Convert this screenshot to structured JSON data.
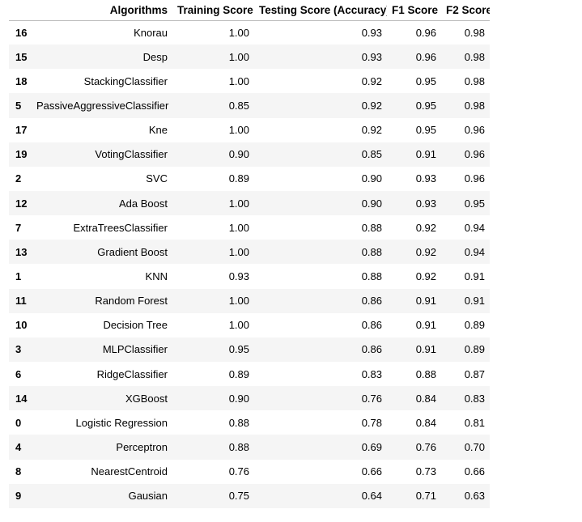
{
  "table": {
    "columns": [
      "",
      "Algorithms",
      "Training Score",
      "Testing Score (Accuracy)",
      "F1 Score",
      "F2 Score"
    ],
    "rows": [
      [
        "16",
        "Knorau",
        "1.00",
        "0.93",
        "0.96",
        "0.98"
      ],
      [
        "15",
        "Desp",
        "1.00",
        "0.93",
        "0.96",
        "0.98"
      ],
      [
        "18",
        "StackingClassifier",
        "1.00",
        "0.92",
        "0.95",
        "0.98"
      ],
      [
        "5",
        "PassiveAggressiveClassifier",
        "0.85",
        "0.92",
        "0.95",
        "0.98"
      ],
      [
        "17",
        "Kne",
        "1.00",
        "0.92",
        "0.95",
        "0.96"
      ],
      [
        "19",
        "VotingClassifier",
        "0.90",
        "0.85",
        "0.91",
        "0.96"
      ],
      [
        "2",
        "SVC",
        "0.89",
        "0.90",
        "0.93",
        "0.96"
      ],
      [
        "12",
        "Ada Boost",
        "1.00",
        "0.90",
        "0.93",
        "0.95"
      ],
      [
        "7",
        "ExtraTreesClassifier",
        "1.00",
        "0.88",
        "0.92",
        "0.94"
      ],
      [
        "13",
        "Gradient Boost",
        "1.00",
        "0.88",
        "0.92",
        "0.94"
      ],
      [
        "1",
        "KNN",
        "0.93",
        "0.88",
        "0.92",
        "0.91"
      ],
      [
        "11",
        "Random Forest",
        "1.00",
        "0.86",
        "0.91",
        "0.91"
      ],
      [
        "10",
        "Decision Tree",
        "1.00",
        "0.86",
        "0.91",
        "0.89"
      ],
      [
        "3",
        "MLPClassifier",
        "0.95",
        "0.86",
        "0.91",
        "0.89"
      ],
      [
        "6",
        "RidgeClassifier",
        "0.89",
        "0.83",
        "0.88",
        "0.87"
      ],
      [
        "14",
        "XGBoost",
        "0.90",
        "0.76",
        "0.84",
        "0.83"
      ],
      [
        "0",
        "Logistic Regression",
        "0.88",
        "0.78",
        "0.84",
        "0.81"
      ],
      [
        "4",
        "Perceptron",
        "0.88",
        "0.69",
        "0.76",
        "0.70"
      ],
      [
        "8",
        "NearestCentroid",
        "0.76",
        "0.66",
        "0.73",
        "0.66"
      ],
      [
        "9",
        "Gausian",
        "0.75",
        "0.64",
        "0.71",
        "0.63"
      ]
    ]
  },
  "colors": {
    "row_stripe": "#f5f5f5",
    "header_border": "#bdbdbd",
    "text": "#000000"
  }
}
